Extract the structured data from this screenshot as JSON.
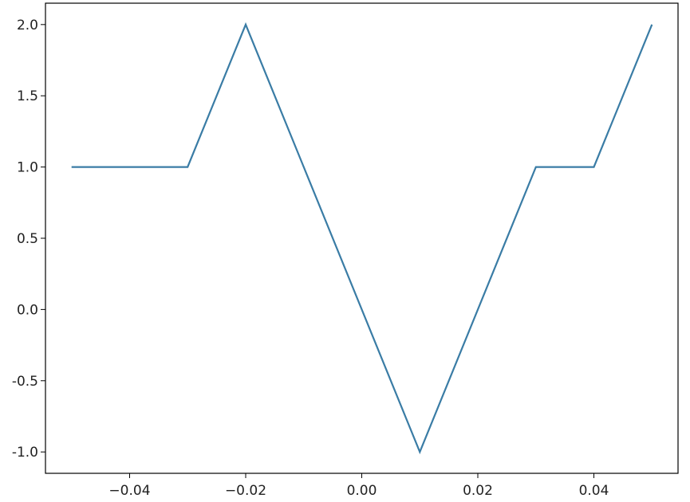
{
  "chart_data": {
    "type": "line",
    "title": "",
    "xlabel": "",
    "ylabel": "",
    "xlim": [
      -0.0545,
      0.0545
    ],
    "ylim": [
      -1.15,
      2.15
    ],
    "xticks": [
      -0.04,
      -0.02,
      0.0,
      0.02,
      0.04
    ],
    "xtick_labels": [
      "−0.04",
      "−0.02",
      "0.00",
      "0.02",
      "0.04"
    ],
    "yticks": [
      -1.0,
      -0.5,
      0.0,
      0.5,
      1.0,
      1.5,
      2.0
    ],
    "ytick_labels": [
      "-1.0",
      "-0.5",
      "0.0",
      "0.5",
      "1.0",
      "1.5",
      "2.0"
    ],
    "grid": false,
    "series": [
      {
        "color": "#3a7ca5",
        "x": [
          -0.05,
          -0.03,
          -0.02,
          0.01,
          0.03,
          0.04,
          0.05
        ],
        "y": [
          1.0,
          1.0,
          2.0,
          -1.0,
          1.0,
          1.0,
          2.0
        ]
      }
    ]
  }
}
